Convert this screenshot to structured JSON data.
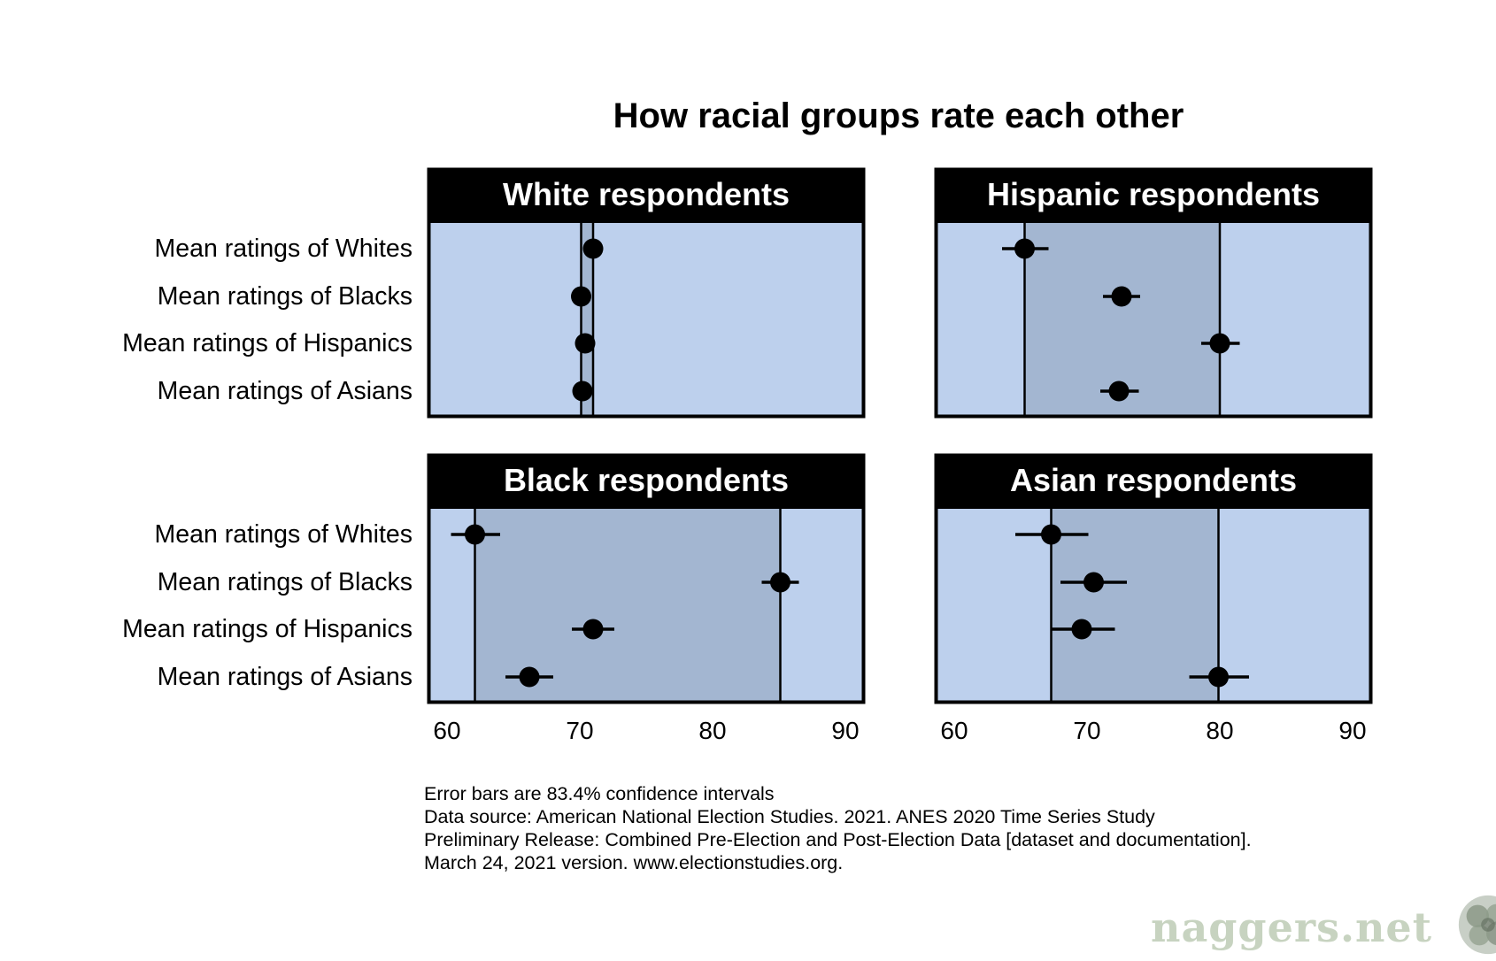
{
  "chart_data": {
    "type": "scatter",
    "title": "How racial groups rate each other",
    "row_labels": [
      "Mean ratings of Whites",
      "Mean ratings of Blacks",
      "Mean ratings of Hispanics",
      "Mean ratings of Asians"
    ],
    "xlim": [
      60,
      90
    ],
    "x_ticks": [
      60,
      70,
      80,
      90
    ],
    "panels": [
      {
        "name": "White respondents",
        "points": [
          {
            "value": 71.0,
            "low": 70.6,
            "high": 71.4
          },
          {
            "value": 70.1,
            "low": 69.7,
            "high": 70.5
          },
          {
            "value": 70.4,
            "low": 70.0,
            "high": 70.8
          },
          {
            "value": 70.2,
            "low": 69.8,
            "high": 70.6
          }
        ],
        "range": [
          70.1,
          71.0
        ]
      },
      {
        "name": "Hispanic respondents",
        "points": [
          {
            "value": 65.3,
            "low": 63.6,
            "high": 67.1
          },
          {
            "value": 72.6,
            "low": 71.2,
            "high": 74.0
          },
          {
            "value": 80.0,
            "low": 78.6,
            "high": 81.5
          },
          {
            "value": 72.4,
            "low": 71.0,
            "high": 73.9
          }
        ],
        "range": [
          65.3,
          80.0
        ]
      },
      {
        "name": "Black respondents",
        "points": [
          {
            "value": 62.1,
            "low": 60.3,
            "high": 64.0
          },
          {
            "value": 85.1,
            "low": 83.7,
            "high": 86.5
          },
          {
            "value": 71.0,
            "low": 69.4,
            "high": 72.6
          },
          {
            "value": 66.2,
            "low": 64.4,
            "high": 68.0
          }
        ],
        "range": [
          62.1,
          85.1
        ]
      },
      {
        "name": "Asian respondents",
        "points": [
          {
            "value": 67.3,
            "low": 64.6,
            "high": 70.1
          },
          {
            "value": 70.5,
            "low": 68.0,
            "high": 73.0
          },
          {
            "value": 69.6,
            "low": 67.3,
            "high": 72.1
          },
          {
            "value": 79.9,
            "low": 77.7,
            "high": 82.2
          }
        ],
        "range": [
          67.3,
          79.9
        ]
      }
    ],
    "colors": {
      "panel_background": "#bdd0ed",
      "range_band": "#a3b6d1",
      "header": "#000000",
      "header_text": "#ffffff",
      "marker": "#000000"
    },
    "grid": false,
    "legend": "none"
  },
  "footnote": [
    "Error bars are 83.4% confidence intervals",
    "Data source: American National Election Studies. 2021. ANES 2020 Time Series Study",
    "Preliminary Release: Combined Pre-Election and Post-Election Data [dataset and documentation].",
    "March 24, 2021 version. www.electionstudies.org."
  ],
  "watermark": {
    "text": "naggers.net",
    "logo_icon": "cauliflower-logo-icon"
  }
}
